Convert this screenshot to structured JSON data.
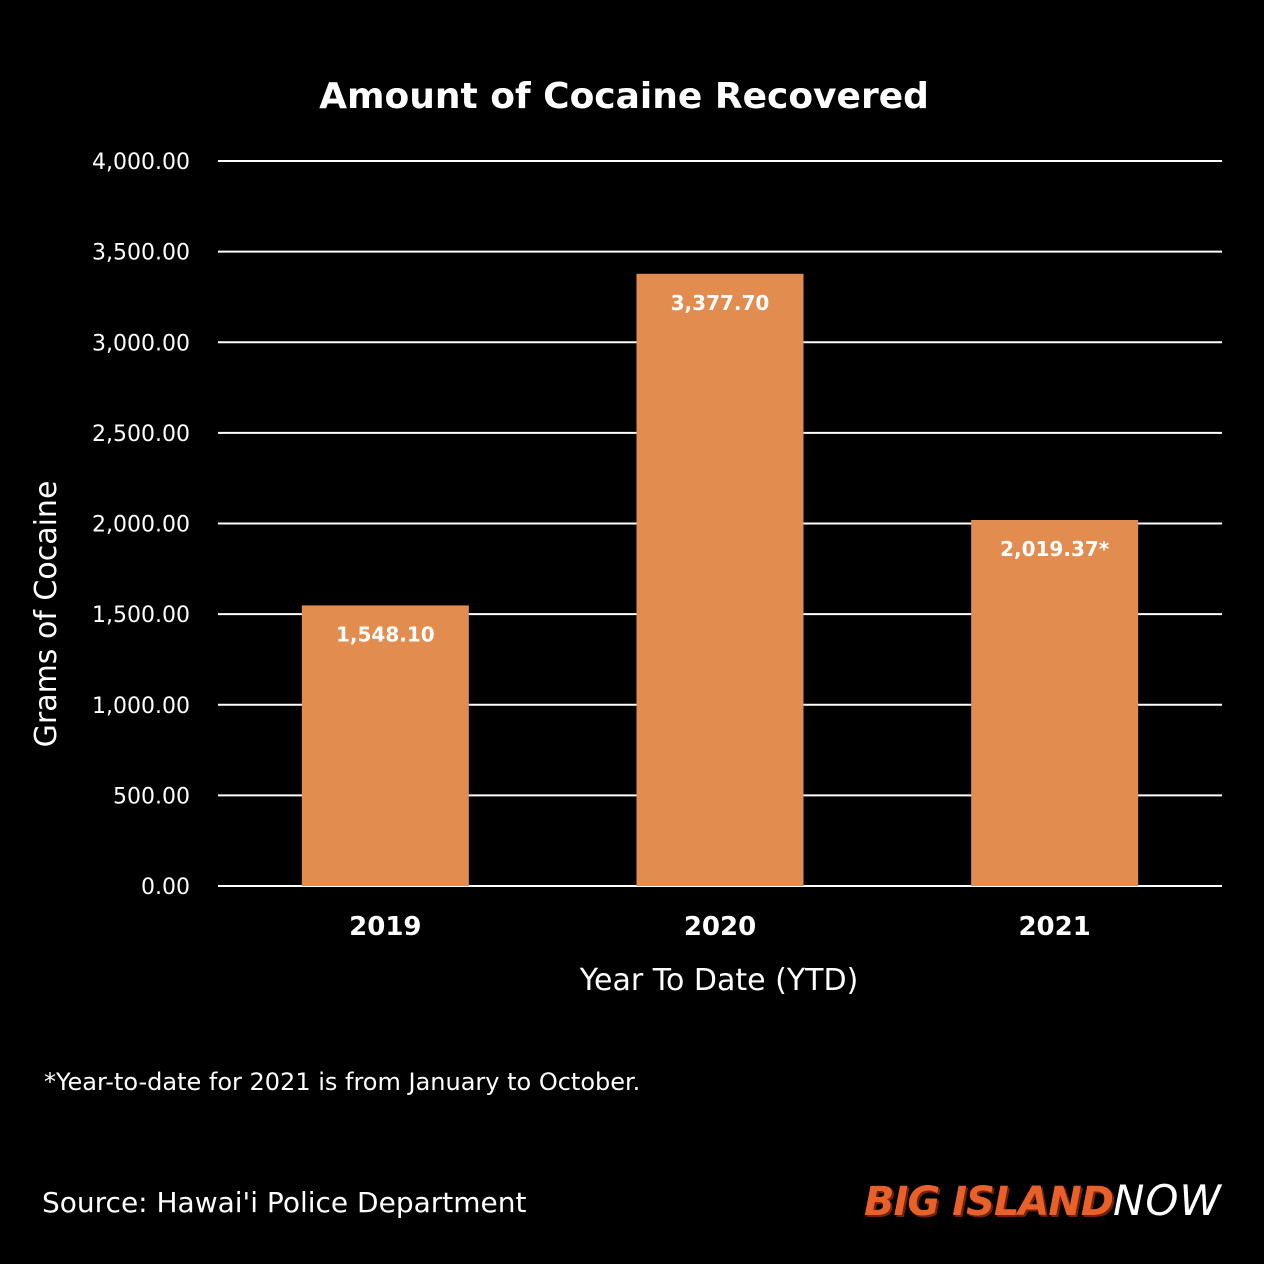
{
  "chart_data": {
    "type": "bar",
    "title": "Amount of Cocaine Recovered",
    "xlabel": "Year To Date (YTD)",
    "ylabel": "Grams of Cocaine",
    "categories": [
      "2019",
      "2020",
      "2021"
    ],
    "values": [
      1548.1,
      3377.7,
      2019.37
    ],
    "data_labels": [
      "1,548.10",
      "3,377.70",
      "2,019.37*"
    ],
    "ylim": [
      0,
      4000
    ],
    "yticks": [
      0,
      500,
      1000,
      1500,
      2000,
      2500,
      3000,
      3500,
      4000
    ],
    "ytick_labels": [
      "0.00",
      "500.00",
      "1,000.00",
      "1,500.00",
      "2,000.00",
      "2,500.00",
      "3,000.00",
      "3,500.00",
      "4,000.00"
    ],
    "grid": true,
    "legend": "none",
    "bar_color": "#e38c4f",
    "background_color": "#000000",
    "gridline_color": "#ffffff"
  },
  "footnote": "*Year-to-date for 2021 is from January to October.",
  "source": "Source: Hawai'i Police Department",
  "logo": {
    "part1": "BIG ISLAND",
    "part2": "NOW"
  }
}
